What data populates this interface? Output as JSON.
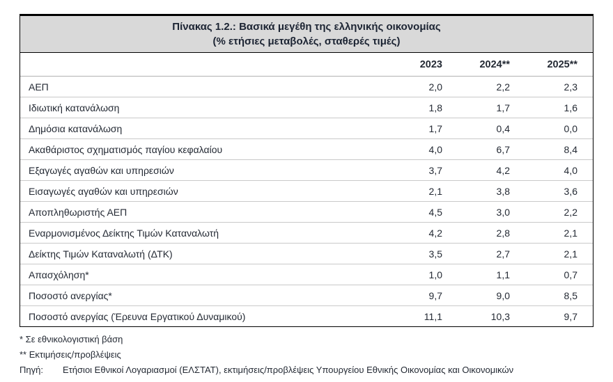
{
  "table": {
    "title_line1": "Πίνακας 1.2.: Βασικά μεγέθη της ελληνικής οικονομίας",
    "title_line2": "(% ετήσιες μεταβολές, σταθερές τιμές)",
    "columns": [
      "2023",
      "2024**",
      "2025**"
    ],
    "rows": [
      {
        "label": "ΑΕΠ",
        "values": [
          "2,0",
          "2,2",
          "2,3"
        ]
      },
      {
        "label": "Ιδιωτική κατανάλωση",
        "values": [
          "1,8",
          "1,7",
          "1,6"
        ]
      },
      {
        "label": "Δημόσια κατανάλωση",
        "values": [
          "1,7",
          "0,4",
          "0,0"
        ]
      },
      {
        "label": "Ακαθάριστος σχηματισμός παγίου κεφαλαίου",
        "values": [
          "4,0",
          "6,7",
          "8,4"
        ]
      },
      {
        "label": "Εξαγωγές αγαθών και υπηρεσιών",
        "values": [
          "3,7",
          "4,2",
          "4,0"
        ]
      },
      {
        "label": "Εισαγωγές αγαθών και υπηρεσιών",
        "values": [
          "2,1",
          "3,8",
          "3,6"
        ]
      },
      {
        "label": "Αποπληθωριστής ΑΕΠ",
        "values": [
          "4,5",
          "3,0",
          "2,2"
        ]
      },
      {
        "label": "Εναρμονισμένος Δείκτης Τιμών Καταναλωτή",
        "values": [
          "4,2",
          "2,8",
          "2,1"
        ]
      },
      {
        "label": "Δείκτης Τιμών Καταναλωτή (ΔΤΚ)",
        "values": [
          "3,5",
          "2,7",
          "2,1"
        ]
      },
      {
        "label": "Απασχόληση*",
        "values": [
          "1,0",
          "1,1",
          "0,7"
        ]
      },
      {
        "label": "Ποσοστό ανεργίας*",
        "values": [
          "9,7",
          "9,0",
          "8,5"
        ]
      },
      {
        "label": "Ποσοστό ανεργίας (Έρευνα Εργατικού Δυναμικού)",
        "values": [
          "11,1",
          "10,3",
          "9,7"
        ]
      }
    ]
  },
  "footnotes": {
    "note1": "* Σε εθνικολογιστική βάση",
    "note2": "** Εκτιμήσεις/προβλέψεις",
    "source_label": "Πηγή:",
    "source_text": "Ετήσιοι Εθνικοί Λογαριασμοί (ΕΛΣΤΑΤ), εκτιμήσεις/προβλέψεις Υπουργείου Εθνικής Οικονομίας και Οικονομικών"
  },
  "colors": {
    "title_bg": "#d9d9d9",
    "border": "#000000",
    "text": "#242a34",
    "row_divider": "#c9c9c9"
  }
}
